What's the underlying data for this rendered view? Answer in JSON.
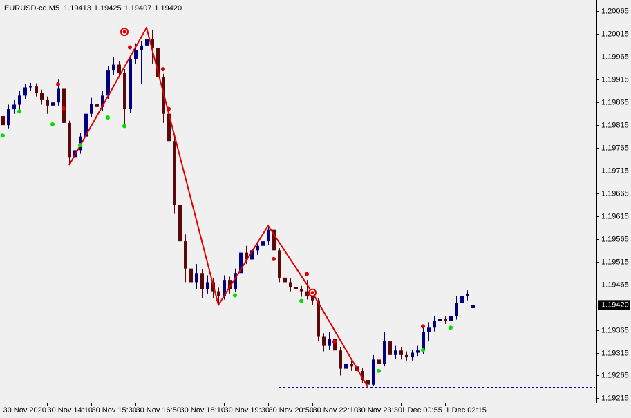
{
  "chart_data": {
    "type": "candlestick",
    "symbol": "EURUSD-cd,M5",
    "header_quotes": [
      "1.19413",
      "1.19425",
      "1.19407",
      "1.19420"
    ],
    "current_price": {
      "value": 1.1942,
      "label": "1.19420"
    },
    "categories": [
      "30 Nov 2020",
      null,
      null,
      null,
      null,
      null,
      null,
      null,
      "30 Nov 14:10",
      null,
      null,
      null,
      null,
      null,
      null,
      null,
      "30 Nov 15:30",
      null,
      null,
      null,
      null,
      null,
      null,
      null,
      "30 Nov 16:50",
      null,
      null,
      null,
      null,
      null,
      null,
      null,
      "30 Nov 18:10",
      null,
      null,
      null,
      null,
      null,
      null,
      null,
      "30 Nov 19:30",
      null,
      null,
      null,
      null,
      null,
      null,
      null,
      "30 Nov 20:50",
      null,
      null,
      null,
      null,
      null,
      null,
      null,
      "30 Nov 22:10",
      null,
      null,
      null,
      null,
      null,
      null,
      null,
      "30 Nov 23:30",
      null,
      null,
      null,
      null,
      null,
      null,
      null,
      "1 Dec 00:55",
      null,
      null,
      null,
      null,
      null,
      null,
      null,
      "1 Dec 02:15",
      null,
      null,
      null,
      null,
      null
    ],
    "open": [
      1.19835,
      1.19815,
      1.1985,
      1.1986,
      1.1988,
      1.19898,
      1.199,
      1.19885,
      1.1987,
      1.19858,
      1.19865,
      1.19895,
      1.1982,
      1.19745,
      1.1976,
      1.1979,
      1.1984,
      1.19862,
      1.19855,
      1.1988,
      1.19935,
      1.19948,
      1.1993,
      1.1985,
      1.1996,
      1.1998,
      1.1999,
      1.20005,
      1.19985,
      1.1992,
      1.1984,
      1.1978,
      1.1964,
      1.1956,
      1.195,
      1.1947,
      1.1949,
      1.19455,
      1.1947,
      1.1945,
      1.1944,
      1.19475,
      1.19455,
      1.1949,
      1.19535,
      1.1952,
      1.1954,
      1.1955,
      1.1956,
      1.19585,
      1.1954,
      1.1948,
      1.1947,
      1.1946,
      1.19455,
      1.1945,
      1.1944,
      1.1943,
      1.1935,
      1.1933,
      1.19345,
      1.1932,
      1.1928,
      1.1929,
      1.19285,
      1.19275,
      1.19255,
      1.19245,
      1.193,
      1.1929,
      1.1934,
      1.1931,
      1.1932,
      1.1931,
      1.19305,
      1.19315,
      1.1932,
      1.1936,
      1.1937,
      1.19385,
      1.1939,
      1.19385,
      1.19395,
      1.19425,
      1.1944,
      1.19413
    ],
    "high": [
      1.19843,
      1.1986,
      1.1987,
      1.1989,
      1.19905,
      1.19908,
      1.19907,
      1.19893,
      1.19878,
      1.19875,
      1.19915,
      1.199,
      1.19825,
      1.1977,
      1.19798,
      1.19848,
      1.19875,
      1.1987,
      1.1989,
      1.19945,
      1.19965,
      1.19955,
      1.19938,
      1.1997,
      1.19995,
      1.2,
      1.20029,
      1.20025,
      1.19995,
      1.19928,
      1.1985,
      1.1979,
      1.1965,
      1.19575,
      1.19515,
      1.1951,
      1.19498,
      1.19485,
      1.1948,
      1.19458,
      1.19485,
      1.19482,
      1.195,
      1.19545,
      1.1955,
      1.19548,
      1.19558,
      1.1957,
      1.19594,
      1.1959,
      1.19545,
      1.19488,
      1.19478,
      1.19468,
      1.19462,
      1.19475,
      1.19447,
      1.19435,
      1.19358,
      1.1936,
      1.19352,
      1.19328,
      1.19298,
      1.19298,
      1.19292,
      1.19282,
      1.19262,
      1.1931,
      1.19315,
      1.1936,
      1.19348,
      1.1933,
      1.19328,
      1.19318,
      1.19322,
      1.1933,
      1.1937,
      1.19382,
      1.19395,
      1.19398,
      1.19395,
      1.19402,
      1.1944,
      1.19455,
      1.19452,
      1.19425
    ],
    "low": [
      1.1979,
      1.19808,
      1.1984,
      1.19848,
      1.19872,
      1.1989,
      1.19878,
      1.1986,
      1.1984,
      1.1983,
      1.19858,
      1.19805,
      1.19727,
      1.19735,
      1.19752,
      1.19782,
      1.19832,
      1.19845,
      1.19846,
      1.19872,
      1.19925,
      1.1992,
      1.19815,
      1.19842,
      1.1995,
      1.19905,
      1.1998,
      1.1995,
      1.199,
      1.1982,
      1.1972,
      1.1962,
      1.1954,
      1.1947,
      1.1944,
      1.19455,
      1.19435,
      1.19445,
      1.19435,
      1.1942,
      1.19432,
      1.19445,
      1.19448,
      1.19482,
      1.1951,
      1.19512,
      1.1953,
      1.1954,
      1.19552,
      1.1953,
      1.1947,
      1.1946,
      1.1945,
      1.19445,
      1.19438,
      1.19432,
      1.1942,
      1.1934,
      1.19318,
      1.19322,
      1.193,
      1.19265,
      1.19272,
      1.19275,
      1.19265,
      1.19248,
      1.1924,
      1.19242,
      1.1928,
      1.19285,
      1.193,
      1.19302,
      1.193,
      1.19298,
      1.19298,
      1.19308,
      1.19312,
      1.1934,
      1.19362,
      1.19375,
      1.19378,
      1.19372,
      1.19388,
      1.19418,
      1.1943,
      1.19407
    ],
    "close": [
      1.19815,
      1.1985,
      1.1986,
      1.1988,
      1.19898,
      1.199,
      1.19885,
      1.1987,
      1.19858,
      1.19865,
      1.19895,
      1.1982,
      1.19745,
      1.1976,
      1.1979,
      1.1984,
      1.19862,
      1.19855,
      1.1988,
      1.19935,
      1.19948,
      1.1993,
      1.1985,
      1.1996,
      1.1998,
      1.1999,
      1.20005,
      1.19985,
      1.1992,
      1.1984,
      1.1978,
      1.1964,
      1.1956,
      1.195,
      1.1947,
      1.1949,
      1.19455,
      1.1947,
      1.1945,
      1.1944,
      1.19475,
      1.19455,
      1.1949,
      1.19535,
      1.1952,
      1.1954,
      1.1955,
      1.1956,
      1.19585,
      1.1954,
      1.1948,
      1.1947,
      1.1946,
      1.19455,
      1.1945,
      1.1944,
      1.1943,
      1.1935,
      1.1933,
      1.19345,
      1.1932,
      1.1928,
      1.1929,
      1.19285,
      1.19275,
      1.19255,
      1.19245,
      1.193,
      1.1929,
      1.1934,
      1.1931,
      1.1932,
      1.1931,
      1.19305,
      1.19315,
      1.1932,
      1.1936,
      1.1937,
      1.19385,
      1.1939,
      1.19385,
      1.19395,
      1.19425,
      1.1944,
      1.19445,
      1.1942
    ],
    "bull_color": "#000080",
    "bear_color": "#5a0a0a",
    "zigzag": {
      "color": "#e00000",
      "index": [
        12,
        26,
        39,
        48,
        56,
        66
      ],
      "values": [
        1.19727,
        1.20029,
        1.1942,
        1.19594,
        1.19447,
        1.1924
      ]
    },
    "signals_high": {
      "color": "#e00000",
      "index": [
        10,
        11,
        23,
        29,
        30,
        49,
        55,
        60,
        76
      ],
      "values": [
        1.19905,
        1.19852,
        1.19986,
        1.19938,
        1.19851,
        1.19521,
        1.19488,
        1.19339,
        1.19373
      ]
    },
    "signals_low": {
      "color": "#00e000",
      "index": [
        0,
        3,
        9,
        14,
        19,
        22,
        42,
        54,
        68,
        76,
        81
      ],
      "values": [
        1.19792,
        1.19845,
        1.19817,
        1.19771,
        1.19832,
        1.19813,
        1.19441,
        1.19429,
        1.19275,
        1.19321,
        1.1937
      ]
    },
    "pivots": {
      "color": "#e00000",
      "index": [
        22,
        56
      ],
      "values": [
        1.2002,
        1.19447
      ]
    },
    "levels": {
      "color": "#0000c0",
      "start_index": [
        27,
        50
      ],
      "values": [
        1.20029,
        1.1924
      ]
    },
    "ylim": [
      1.19205,
      1.2009
    ],
    "yticks": [
      1.20065,
      1.20015,
      1.19965,
      1.19915,
      1.19865,
      1.19815,
      1.19765,
      1.19715,
      1.19665,
      1.19615,
      1.19565,
      1.19515,
      1.19465,
      1.19365,
      1.19315,
      1.19265,
      1.19215
    ]
  }
}
